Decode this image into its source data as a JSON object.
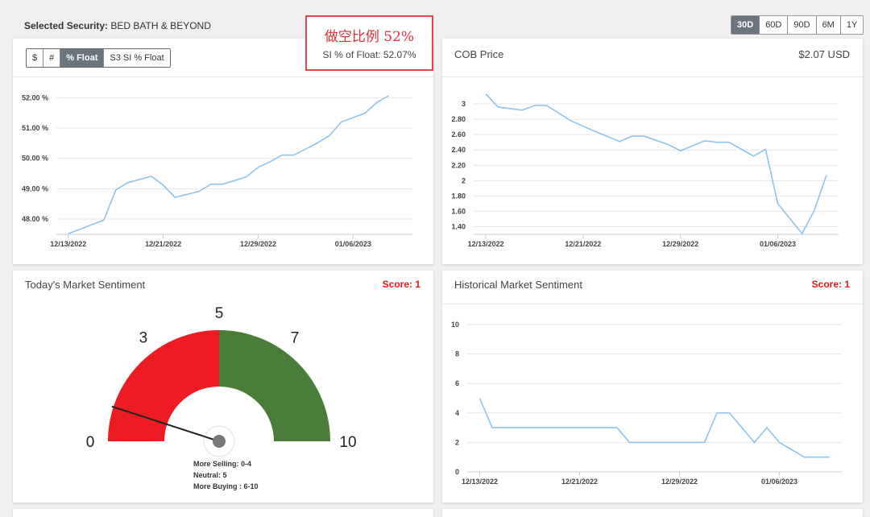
{
  "header": {
    "label": "Selected Security:",
    "value": "BED BATH & BEYOND"
  },
  "annotation": {
    "title": "做空比例  52%",
    "subtitle": "SI % of Float: 52.07%"
  },
  "range_buttons": {
    "items": [
      "30D",
      "60D",
      "90D",
      "6M",
      "1Y"
    ],
    "active": 0
  },
  "float_panel": {
    "buttons": [
      "$",
      "#",
      "% Float",
      "S3 SI % Float"
    ],
    "active": 2,
    "chart": {
      "type": "line",
      "color": "#8ec3ea",
      "grid": true,
      "x": [
        "12/13/2022",
        "12/16/2022",
        "12/17/2022",
        "12/18/2022",
        "12/20/2022",
        "12/21/2022",
        "12/22/2022",
        "12/24/2022",
        "12/25/2022",
        "12/26/2022",
        "12/28/2022",
        "12/29/2022",
        "12/30/2022",
        "12/31/2022",
        "01/01/2023",
        "01/03/2023",
        "01/04/2023",
        "01/05/2023",
        "01/07/2023",
        "01/08/2023",
        "01/09/2023"
      ],
      "values": [
        47.52,
        47.97,
        48.96,
        49.2,
        49.41,
        49.12,
        48.72,
        48.91,
        49.15,
        49.15,
        49.39,
        49.71,
        49.89,
        50.11,
        50.11,
        50.51,
        50.75,
        51.2,
        51.49,
        51.84,
        52.07
      ],
      "xlim": [
        "12/12/2022",
        "01/11/2023"
      ],
      "xticks": [
        "12/13/2022",
        "12/21/2022",
        "12/29/2022",
        "01/06/2023"
      ],
      "ylim": [
        47.5,
        52.3
      ],
      "yticks": [
        {
          "value": 48,
          "label": "48.00 %"
        },
        {
          "value": 49,
          "label": "49.00 %"
        },
        {
          "value": 50,
          "label": "50.00 %"
        },
        {
          "value": 51,
          "label": "51.00 %"
        },
        {
          "value": 52,
          "label": "52.00 %"
        }
      ]
    }
  },
  "price_panel": {
    "title": "COB Price",
    "price": "$2.07 USD",
    "chart": {
      "type": "line",
      "color": "#8ec3ea",
      "grid": true,
      "x": [
        "12/13/2022",
        "12/14/2022",
        "12/16/2022",
        "12/17/2022",
        "12/18/2022",
        "12/20/2022",
        "12/21/2022",
        "12/22/2022",
        "12/24/2022",
        "12/25/2022",
        "12/26/2022",
        "12/28/2022",
        "12/29/2022",
        "12/31/2022",
        "01/01/2023",
        "01/02/2023",
        "01/04/2023",
        "01/05/2023",
        "01/06/2023",
        "01/08/2023",
        "01/09/2023",
        "01/10/2023"
      ],
      "values": [
        3.13,
        2.96,
        2.92,
        2.98,
        2.98,
        2.78,
        2.71,
        2.64,
        2.51,
        2.58,
        2.58,
        2.47,
        2.39,
        2.52,
        2.5,
        2.5,
        2.32,
        2.41,
        1.7,
        1.31,
        1.61,
        2.07
      ],
      "xlim": [
        "12/12/2022",
        "01/11/2023"
      ],
      "xticks": [
        "12/13/2022",
        "12/21/2022",
        "12/29/2022",
        "01/06/2023"
      ],
      "ylim": [
        1.3,
        3.2
      ],
      "yticks": [
        {
          "value": 1.4,
          "label": "1.40"
        },
        {
          "value": 1.6,
          "label": "1.60"
        },
        {
          "value": 1.8,
          "label": "1.80"
        },
        2,
        {
          "value": 2.2,
          "label": "2.20"
        },
        {
          "value": 2.4,
          "label": "2.40"
        },
        {
          "value": 2.6,
          "label": "2.60"
        },
        {
          "value": 2.8,
          "label": "2.80"
        },
        3
      ]
    }
  },
  "sentiment_panel": {
    "title": "Today's Market Sentiment",
    "score": "Score: 1",
    "gauge": {
      "min": 0,
      "max": 10,
      "split": 5,
      "value": 1,
      "labels": [
        0,
        3,
        5,
        7,
        10
      ],
      "colors": [
        "#ed1c24",
        "#4a7c3a"
      ],
      "legend": [
        "More Selling: 0-4",
        "Neutral: 5",
        "More Buying : 6-10"
      ]
    }
  },
  "history_panel": {
    "title": "Historical Market Sentiment",
    "score": "Score: 1",
    "chart": {
      "type": "line",
      "color": "#8ec3ea",
      "grid": true,
      "x": [
        "12/13/2022",
        "12/14/2022",
        "12/16/2022",
        "12/17/2022",
        "12/18/2022",
        "12/20/2022",
        "12/21/2022",
        "12/22/2022",
        "12/24/2022",
        "12/25/2022",
        "12/26/2022",
        "12/28/2022",
        "12/29/2022",
        "12/31/2022",
        "01/01/2023",
        "01/02/2023",
        "01/04/2023",
        "01/05/2023",
        "01/06/2023",
        "01/08/2023",
        "01/09/2023",
        "01/10/2023"
      ],
      "values": [
        5,
        3,
        3,
        3,
        3,
        3,
        3,
        3,
        3,
        2,
        2,
        2,
        2,
        2,
        4,
        4,
        2,
        3,
        2,
        1,
        1,
        1
      ],
      "xlim": [
        "12/12/2022",
        "01/11/2023"
      ],
      "xticks": [
        "12/13/2022",
        "12/21/2022",
        "12/29/2022",
        "01/06/2023"
      ],
      "ylim": [
        0,
        10
      ],
      "yticks": [
        0,
        2,
        4,
        6,
        8,
        10
      ]
    }
  }
}
